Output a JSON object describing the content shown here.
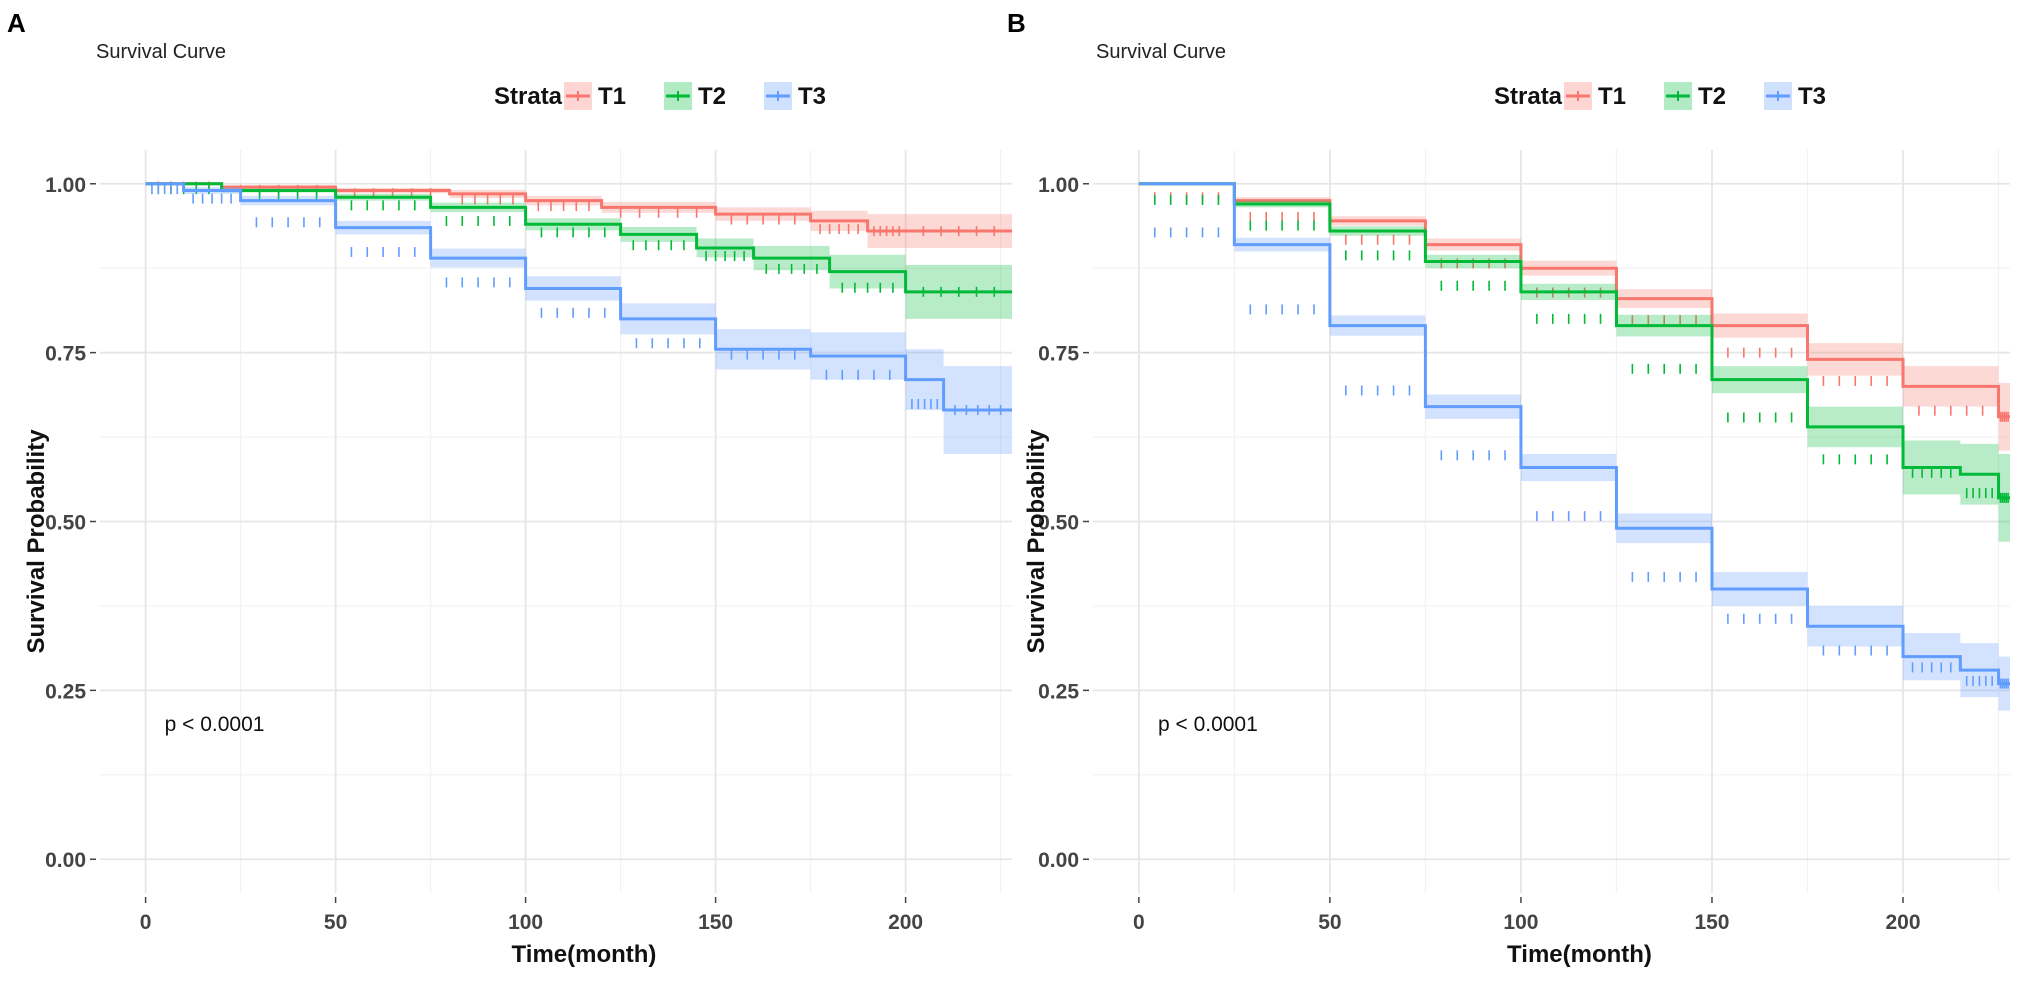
{
  "chart_data": [
    {
      "panel": "A",
      "type": "line",
      "subtype": "kaplan-meier",
      "title": "Survival Curve",
      "xlabel": "Time(month)",
      "ylabel": "Survival Probability",
      "xlim": [
        -12,
        228
      ],
      "ylim": [
        -0.05,
        1.05
      ],
      "xticks": [
        0,
        50,
        100,
        150,
        200
      ],
      "xtick_labels": [
        "0",
        "50",
        "100",
        "150",
        "200"
      ],
      "yticks": [
        0,
        0.25,
        0.5,
        0.75,
        1.0
      ],
      "ytick_labels": [
        "0.00",
        "0.25",
        "0.50",
        "0.75",
        "1.00"
      ],
      "legend_title": "Strata",
      "legend_position": "top",
      "annotation": "p < 0.0001",
      "annotation_at": [
        5,
        0.2
      ],
      "series": [
        {
          "name": "T1",
          "color": "#F8766D",
          "x": [
            0,
            20,
            50,
            80,
            100,
            120,
            150,
            175,
            190,
            200,
            228
          ],
          "y": [
            1.0,
            0.995,
            0.99,
            0.985,
            0.975,
            0.965,
            0.955,
            0.945,
            0.93,
            0.93,
            0.93
          ],
          "ci_half": [
            0,
            0.003,
            0.004,
            0.006,
            0.007,
            0.008,
            0.01,
            0.015,
            0.025,
            0.025,
            0.025
          ]
        },
        {
          "name": "T2",
          "color": "#00BA38",
          "x": [
            0,
            20,
            50,
            75,
            100,
            125,
            145,
            160,
            180,
            200,
            228
          ],
          "y": [
            1.0,
            0.99,
            0.98,
            0.965,
            0.94,
            0.925,
            0.905,
            0.89,
            0.87,
            0.84,
            0.84
          ],
          "ci_half": [
            0,
            0.003,
            0.005,
            0.007,
            0.009,
            0.011,
            0.014,
            0.018,
            0.025,
            0.04,
            0.04
          ]
        },
        {
          "name": "T3",
          "color": "#619CFF",
          "x": [
            0,
            10,
            25,
            50,
            75,
            100,
            125,
            150,
            175,
            200,
            210,
            228
          ],
          "y": [
            1.0,
            0.99,
            0.975,
            0.935,
            0.89,
            0.845,
            0.8,
            0.755,
            0.745,
            0.71,
            0.665,
            0.665
          ],
          "ci_half": [
            0,
            0.005,
            0.007,
            0.01,
            0.014,
            0.018,
            0.023,
            0.03,
            0.035,
            0.045,
            0.065,
            0.065
          ]
        }
      ]
    },
    {
      "panel": "B",
      "type": "line",
      "subtype": "kaplan-meier",
      "title": "Survival Curve",
      "xlabel": "Time(month)",
      "ylabel": "Survival Probability",
      "xlim": [
        -12,
        228
      ],
      "ylim": [
        -0.05,
        1.05
      ],
      "xticks": [
        0,
        50,
        100,
        150,
        200
      ],
      "xtick_labels": [
        "0",
        "50",
        "100",
        "150",
        "200"
      ],
      "yticks": [
        0,
        0.25,
        0.5,
        0.75,
        1.0
      ],
      "ytick_labels": [
        "0.00",
        "0.25",
        "0.50",
        "0.75",
        "1.00"
      ],
      "legend_title": "Strata",
      "legend_position": "top",
      "annotation": "p < 0.0001",
      "annotation_at": [
        5,
        0.2
      ],
      "series": [
        {
          "name": "T1",
          "color": "#F8766D",
          "x": [
            0,
            25,
            50,
            75,
            100,
            125,
            150,
            175,
            200,
            225,
            228
          ],
          "y": [
            1.0,
            0.975,
            0.945,
            0.91,
            0.875,
            0.83,
            0.79,
            0.74,
            0.7,
            0.655,
            0.655
          ],
          "ci_half": [
            0,
            0.005,
            0.007,
            0.009,
            0.011,
            0.014,
            0.018,
            0.024,
            0.03,
            0.05,
            0.05
          ]
        },
        {
          "name": "T2",
          "color": "#00BA38",
          "x": [
            0,
            25,
            50,
            75,
            100,
            125,
            150,
            175,
            200,
            215,
            225,
            228
          ],
          "y": [
            1.0,
            0.97,
            0.93,
            0.885,
            0.84,
            0.79,
            0.71,
            0.64,
            0.58,
            0.57,
            0.535,
            0.535
          ],
          "ci_half": [
            0,
            0.005,
            0.007,
            0.01,
            0.012,
            0.016,
            0.02,
            0.03,
            0.04,
            0.045,
            0.065,
            0.065
          ]
        },
        {
          "name": "T3",
          "color": "#619CFF",
          "x": [
            0,
            25,
            50,
            75,
            100,
            125,
            150,
            175,
            200,
            215,
            225,
            228
          ],
          "y": [
            1.0,
            0.91,
            0.79,
            0.67,
            0.58,
            0.49,
            0.4,
            0.345,
            0.3,
            0.28,
            0.26,
            0.26
          ],
          "ci_half": [
            0,
            0.01,
            0.015,
            0.018,
            0.02,
            0.022,
            0.025,
            0.03,
            0.035,
            0.04,
            0.04,
            0.04
          ]
        }
      ]
    }
  ]
}
